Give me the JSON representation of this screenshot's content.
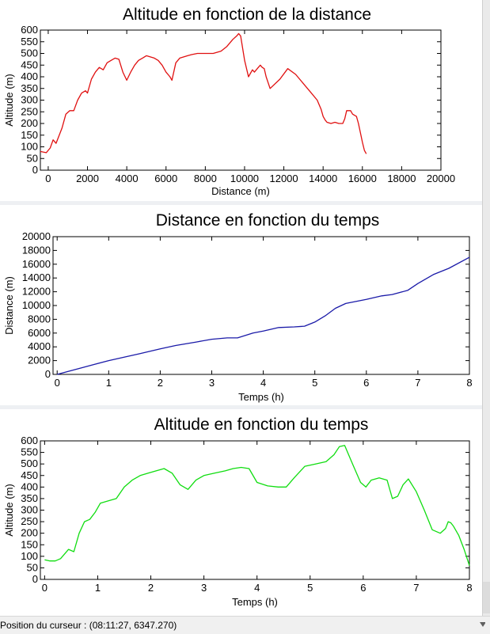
{
  "status": {
    "label": "Position du curseur :",
    "value": "(08:11:27, 6347.270)"
  },
  "colors": {
    "alt_dist": "#e01010",
    "dist_time": "#1a1aa8",
    "alt_time": "#10dd10"
  },
  "chart_data": [
    {
      "type": "line",
      "title": "Altitude en fonction de la distance",
      "xlabel": "Distance (m)",
      "ylabel": "Altitude (m)",
      "xlim": [
        -400,
        20000
      ],
      "ylim": [
        0,
        600
      ],
      "xticks": [
        0,
        2000,
        4000,
        6000,
        8000,
        10000,
        12000,
        14000,
        16000,
        18000,
        20000
      ],
      "yticks": [
        0,
        50,
        100,
        150,
        200,
        250,
        300,
        350,
        400,
        450,
        500,
        550,
        600
      ],
      "grid": false,
      "series": [
        {
          "color": "alt_dist",
          "x": [
            -400,
            -100,
            100,
            250,
            400,
            700,
            900,
            1100,
            1300,
            1500,
            1700,
            1900,
            2000,
            2200,
            2400,
            2600,
            2800,
            3000,
            3200,
            3400,
            3600,
            3800,
            4000,
            4200,
            4400,
            4600,
            4800,
            5000,
            5200,
            5400,
            5600,
            5800,
            6000,
            6200,
            6300,
            6500,
            6700,
            6900,
            7100,
            7300,
            7600,
            8000,
            8400,
            8800,
            9100,
            9400,
            9600,
            9700,
            9800,
            10000,
            10200,
            10400,
            10500,
            10700,
            10800,
            10900,
            11000,
            11100,
            11300,
            11800,
            12200,
            12600,
            13000,
            13400,
            13700,
            13900,
            14000,
            14100,
            14200,
            14400,
            14600,
            14800,
            15000,
            15100,
            15200,
            15400,
            15500,
            15700,
            15800,
            15900,
            16000,
            16100,
            16200
          ],
          "y": [
            80,
            75,
            95,
            130,
            115,
            180,
            240,
            255,
            255,
            300,
            330,
            340,
            330,
            390,
            420,
            440,
            430,
            460,
            470,
            480,
            475,
            420,
            385,
            420,
            450,
            470,
            480,
            490,
            485,
            480,
            470,
            450,
            420,
            400,
            385,
            460,
            480,
            485,
            490,
            495,
            500,
            500,
            500,
            510,
            530,
            560,
            575,
            585,
            575,
            470,
            400,
            430,
            420,
            440,
            450,
            440,
            435,
            400,
            350,
            390,
            435,
            410,
            370,
            330,
            300,
            260,
            230,
            215,
            205,
            200,
            205,
            200,
            200,
            220,
            255,
            255,
            240,
            230,
            200,
            160,
            120,
            85,
            70
          ]
        }
      ]
    },
    {
      "type": "line",
      "title": "Distance en fonction du temps",
      "xlabel": "Temps (h)",
      "ylabel": "Distance (m)",
      "xlim": [
        -0.08,
        8
      ],
      "ylim": [
        0,
        20000
      ],
      "xticks": [
        0,
        1,
        2,
        3,
        4,
        5,
        6,
        7,
        8
      ],
      "yticks": [
        0,
        2000,
        4000,
        6000,
        8000,
        10000,
        12000,
        14000,
        16000,
        18000,
        20000
      ],
      "grid": false,
      "series": [
        {
          "color": "dist_time",
          "x": [
            0,
            0.1,
            0.3,
            0.5,
            0.7,
            1.0,
            1.3,
            1.6,
            2.0,
            2.3,
            2.7,
            3.0,
            3.3,
            3.5,
            3.8,
            4.0,
            4.3,
            4.6,
            4.8,
            5.0,
            5.2,
            5.4,
            5.6,
            6.0,
            6.3,
            6.5,
            6.8,
            7.0,
            7.3,
            7.6,
            8.0
          ],
          "y": [
            0,
            200,
            600,
            1000,
            1400,
            2000,
            2500,
            3000,
            3700,
            4200,
            4700,
            5100,
            5300,
            5300,
            6000,
            6300,
            6800,
            6900,
            7000,
            7600,
            8500,
            9600,
            10300,
            10900,
            11400,
            11600,
            12200,
            13200,
            14500,
            15400,
            17000
          ]
        }
      ]
    },
    {
      "type": "line",
      "title": "Altitude en fonction du temps",
      "xlabel": "Temps (h)",
      "ylabel": "Altitude (m)",
      "xlim": [
        -0.08,
        8
      ],
      "ylim": [
        0,
        600
      ],
      "xticks": [
        0,
        1,
        2,
        3,
        4,
        5,
        6,
        7,
        8
      ],
      "yticks": [
        0,
        50,
        100,
        150,
        200,
        250,
        300,
        350,
        400,
        450,
        500,
        550,
        600
      ],
      "grid": false,
      "series": [
        {
          "color": "alt_time",
          "x": [
            0,
            0.1,
            0.2,
            0.3,
            0.45,
            0.55,
            0.65,
            0.75,
            0.85,
            0.95,
            1.05,
            1.2,
            1.35,
            1.5,
            1.65,
            1.8,
            1.95,
            2.1,
            2.25,
            2.4,
            2.55,
            2.7,
            2.85,
            3.0,
            3.2,
            3.4,
            3.55,
            3.7,
            3.85,
            4.0,
            4.2,
            4.4,
            4.55,
            4.7,
            4.9,
            5.1,
            5.3,
            5.45,
            5.55,
            5.65,
            5.8,
            5.95,
            6.05,
            6.15,
            6.3,
            6.45,
            6.55,
            6.65,
            6.75,
            6.85,
            7.0,
            7.15,
            7.3,
            7.45,
            7.55,
            7.6,
            7.65,
            7.7,
            7.8,
            7.9,
            8.0
          ],
          "y": [
            85,
            80,
            80,
            90,
            130,
            120,
            200,
            250,
            260,
            290,
            330,
            340,
            350,
            400,
            430,
            450,
            460,
            470,
            480,
            460,
            410,
            390,
            430,
            450,
            460,
            470,
            480,
            485,
            480,
            420,
            405,
            400,
            400,
            440,
            490,
            500,
            510,
            540,
            575,
            580,
            500,
            420,
            400,
            430,
            440,
            430,
            350,
            360,
            410,
            435,
            380,
            300,
            215,
            200,
            220,
            250,
            245,
            230,
            190,
            130,
            60
          ]
        }
      ]
    }
  ]
}
